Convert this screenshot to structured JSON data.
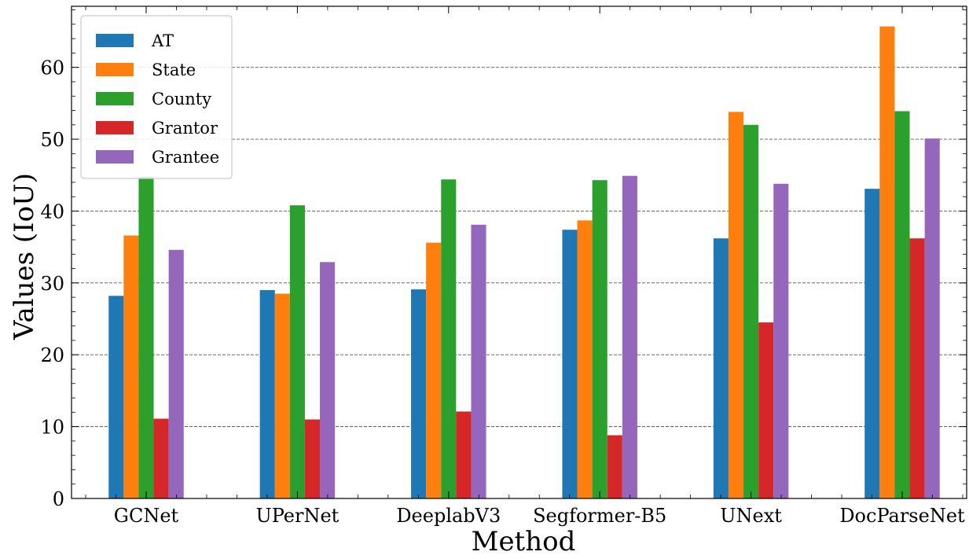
{
  "chart_data": {
    "type": "bar",
    "title": "",
    "xlabel": "Method",
    "ylabel": "Values (IoU)",
    "categories": [
      "GCNet",
      "UPerNet",
      "DeeplabV3",
      "Segformer-B5",
      "UNext",
      "DocParseNet"
    ],
    "series": [
      {
        "name": "AT",
        "color": "#1f77b4",
        "values": [
          28.2,
          29.0,
          29.1,
          37.4,
          36.2,
          43.1
        ]
      },
      {
        "name": "State",
        "color": "#ff7f0e",
        "values": [
          36.6,
          28.5,
          35.6,
          38.7,
          53.8,
          65.7
        ]
      },
      {
        "name": "County",
        "color": "#2ca02c",
        "values": [
          44.8,
          40.8,
          44.4,
          44.3,
          52.0,
          53.9
        ]
      },
      {
        "name": "Grantor",
        "color": "#d62728",
        "values": [
          11.1,
          11.0,
          12.1,
          8.8,
          24.5,
          36.2
        ]
      },
      {
        "name": "Grantee",
        "color": "#9467bd",
        "values": [
          34.6,
          32.9,
          38.1,
          44.9,
          43.8,
          50.1
        ]
      }
    ],
    "ylim": [
      0,
      68.5
    ],
    "yticks": [
      0,
      10,
      20,
      30,
      40,
      50,
      60
    ],
    "ytick_labels": [
      "0",
      "10",
      "20",
      "30",
      "40",
      "50",
      "60"
    ],
    "grid": "horizontal dashed",
    "legend_position": "top-left"
  }
}
